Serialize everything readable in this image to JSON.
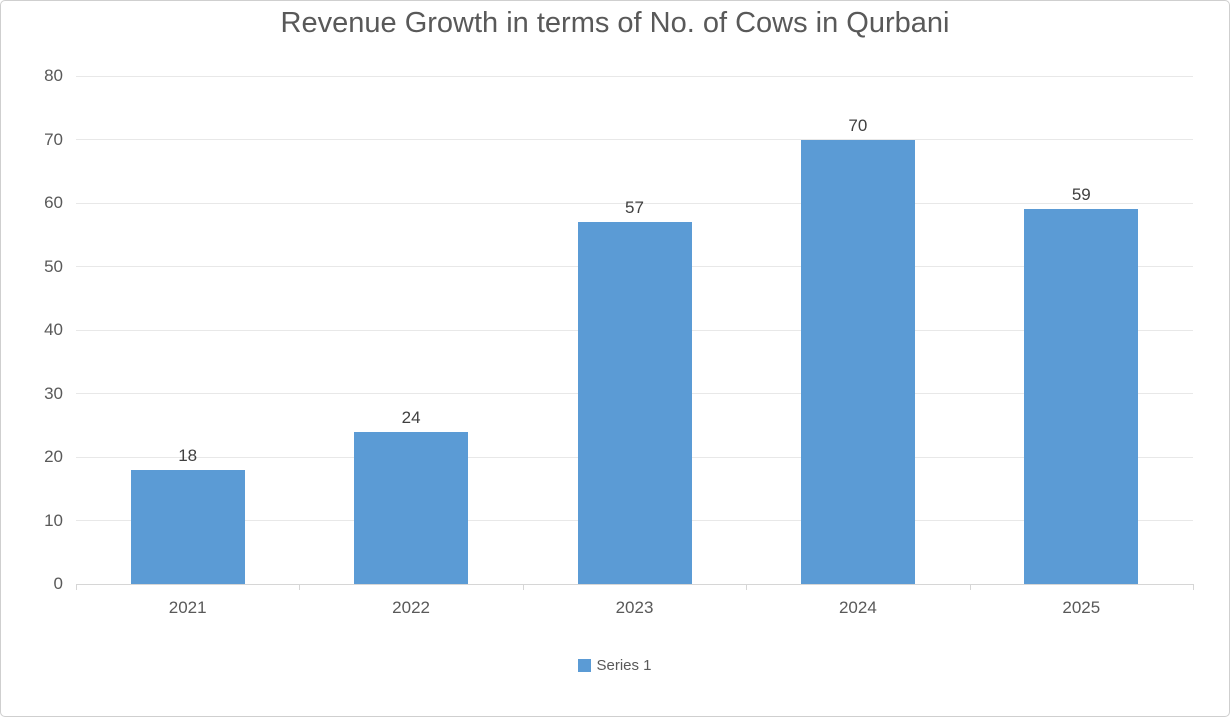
{
  "chart_data": {
    "type": "bar",
    "title": "Revenue Growth in terms of No. of Cows in Qurbani",
    "categories": [
      "2021",
      "2022",
      "2023",
      "2024",
      "2025"
    ],
    "series": [
      {
        "name": "Series 1",
        "values": [
          18,
          24,
          57,
          70,
          59
        ]
      }
    ],
    "xlabel": "",
    "ylabel": "",
    "ylim": [
      0,
      80
    ],
    "yticks": [
      0,
      10,
      20,
      30,
      40,
      50,
      60,
      70,
      80
    ],
    "grid": true,
    "data_labels_shown": true,
    "legend_position": "bottom"
  },
  "colors": {
    "bar": "#5B9BD5",
    "title_text": "#595959",
    "axis_text": "#595959",
    "value_label_text": "#404040",
    "gridline": "#e8e8e8",
    "axis_line": "#d6d6d6",
    "frame_border": "#cfcfcf",
    "background": "#ffffff"
  }
}
